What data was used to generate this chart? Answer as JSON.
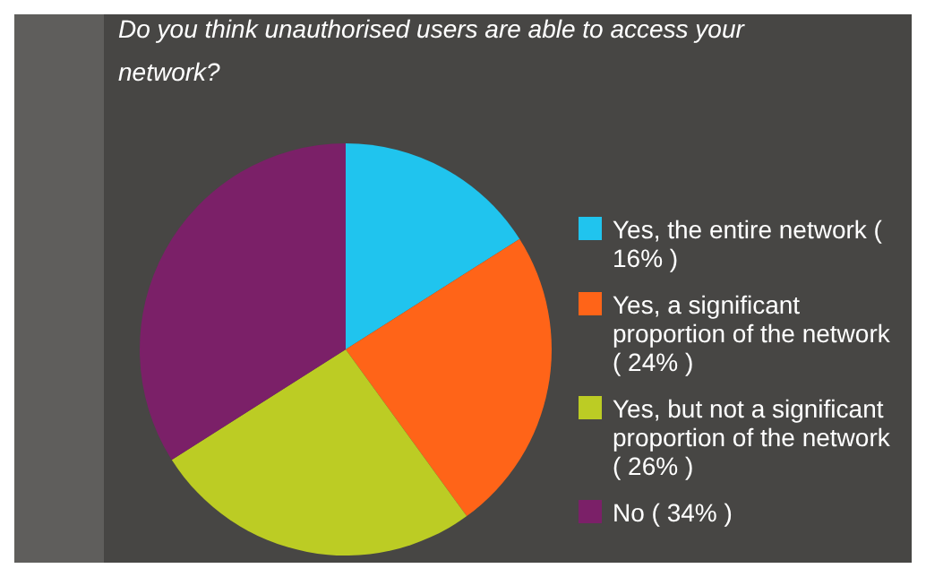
{
  "chart_data": {
    "type": "pie",
    "title": "Do you think unauthorised users are able to access your network?",
    "categories": [
      "Yes, the entire network ( 16% )",
      "Yes, a significant proportion of the network ( 24% )",
      "Yes, but not a significant proportion of the network ( 26% )",
      "No ( 34% )"
    ],
    "values": [
      16,
      24,
      26,
      34
    ],
    "colors": [
      "#20c4ee",
      "#ff6418",
      "#bccc24",
      "#7b2068"
    ],
    "legend": "right"
  }
}
